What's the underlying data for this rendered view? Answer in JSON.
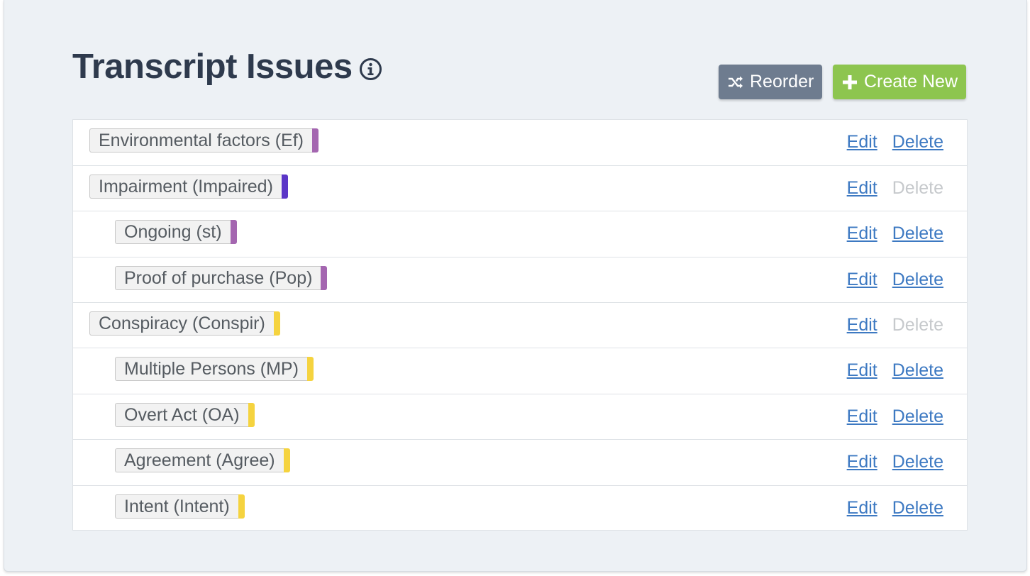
{
  "page": {
    "title": "Transcript Issues"
  },
  "toolbar": {
    "reorder_label": "Reorder",
    "create_label": "Create New"
  },
  "colors": {
    "purple": "#a466b0",
    "indigo": "#5b36c7",
    "yellow": "#f5d33f"
  },
  "issues": [
    {
      "label": "Environmental factors (Ef)",
      "color": "#a466b0",
      "indent": 0,
      "edit": "Edit",
      "delete": "Delete",
      "delete_enabled": true
    },
    {
      "label": "Impairment (Impaired)",
      "color": "#5b36c7",
      "indent": 0,
      "edit": "Edit",
      "delete": "Delete",
      "delete_enabled": false
    },
    {
      "label": "Ongoing (st)",
      "color": "#a466b0",
      "indent": 1,
      "edit": "Edit",
      "delete": "Delete",
      "delete_enabled": true
    },
    {
      "label": "Proof of purchase (Pop)",
      "color": "#a466b0",
      "indent": 1,
      "edit": "Edit",
      "delete": "Delete",
      "delete_enabled": true
    },
    {
      "label": "Conspiracy (Conspir)",
      "color": "#f5d33f",
      "indent": 0,
      "edit": "Edit",
      "delete": "Delete",
      "delete_enabled": false
    },
    {
      "label": "Multiple Persons (MP)",
      "color": "#f5d33f",
      "indent": 1,
      "edit": "Edit",
      "delete": "Delete",
      "delete_enabled": true
    },
    {
      "label": "Overt Act (OA)",
      "color": "#f5d33f",
      "indent": 1,
      "edit": "Edit",
      "delete": "Delete",
      "delete_enabled": true
    },
    {
      "label": "Agreement (Agree)",
      "color": "#f5d33f",
      "indent": 1,
      "edit": "Edit",
      "delete": "Delete",
      "delete_enabled": true
    },
    {
      "label": "Intent (Intent)",
      "color": "#f5d33f",
      "indent": 1,
      "edit": "Edit",
      "delete": "Delete",
      "delete_enabled": true
    }
  ]
}
